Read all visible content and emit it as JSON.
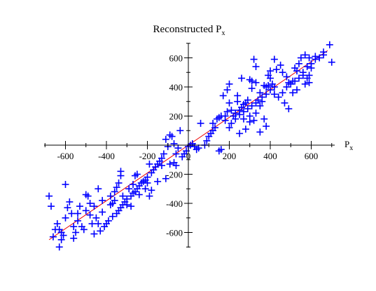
{
  "chart_data": {
    "type": "scatter",
    "title": "Reconstructed P",
    "title_sub": "x",
    "xlabel": "P",
    "xlabel_sub": "x",
    "ylabel": "",
    "xlim": [
      -700,
      700
    ],
    "ylim": [
      -700,
      700
    ],
    "x_ticks": [
      -600,
      -400,
      -200,
      0,
      200,
      400,
      600
    ],
    "y_ticks": [
      -600,
      -400,
      -200,
      0,
      200,
      400,
      600
    ],
    "x_tick_labels": [
      "-600",
      "-400",
      "-200",
      "0",
      "200",
      "400",
      "600"
    ],
    "y_tick_labels": [
      "-600",
      "-400",
      "-200",
      "0",
      "200",
      "400",
      "600"
    ],
    "grid": false,
    "marker": "plus",
    "marker_color": "#0000ff",
    "fit_line": {
      "color": "#ee0000",
      "x": [
        -680,
        680
      ],
      "y": [
        -650,
        650
      ]
    },
    "points": [
      [
        690,
        690
      ],
      [
        700,
        570
      ],
      [
        660,
        640
      ],
      [
        660,
        620
      ],
      [
        620,
        610
      ],
      [
        590,
        600
      ],
      [
        570,
        620
      ],
      [
        600,
        530
      ],
      [
        590,
        480
      ],
      [
        580,
        460
      ],
      [
        560,
        480
      ],
      [
        550,
        600
      ],
      [
        540,
        560
      ],
      [
        530,
        510
      ],
      [
        520,
        530
      ],
      [
        510,
        440
      ],
      [
        490,
        430
      ],
      [
        480,
        470
      ],
      [
        460,
        500
      ],
      [
        450,
        550
      ],
      [
        430,
        520
      ],
      [
        420,
        590
      ],
      [
        420,
        400
      ],
      [
        410,
        420
      ],
      [
        400,
        460
      ],
      [
        400,
        510
      ],
      [
        390,
        480
      ],
      [
        390,
        410
      ],
      [
        380,
        400
      ],
      [
        370,
        410
      ],
      [
        360,
        300
      ],
      [
        350,
        360
      ],
      [
        330,
        430
      ],
      [
        330,
        540
      ],
      [
        320,
        590
      ],
      [
        310,
        440
      ],
      [
        300,
        450
      ],
      [
        300,
        200
      ],
      [
        290,
        310
      ],
      [
        280,
        290
      ],
      [
        270,
        280
      ],
      [
        260,
        260
      ],
      [
        250,
        240
      ],
      [
        240,
        300
      ],
      [
        240,
        340
      ],
      [
        230,
        220
      ],
      [
        220,
        200
      ],
      [
        210,
        240
      ],
      [
        200,
        290
      ],
      [
        190,
        230
      ],
      [
        180,
        200
      ],
      [
        170,
        340
      ],
      [
        160,
        200
      ],
      [
        150,
        190
      ],
      [
        140,
        180
      ],
      [
        130,
        120
      ],
      [
        120,
        100
      ],
      [
        110,
        80
      ],
      [
        100,
        60
      ],
      [
        90,
        30
      ],
      [
        80,
        0
      ],
      [
        60,
        150
      ],
      [
        50,
        -20
      ],
      [
        40,
        -30
      ],
      [
        30,
        -10
      ],
      [
        20,
        10
      ],
      [
        10,
        0
      ],
      [
        0,
        -10
      ],
      [
        -10,
        -40
      ],
      [
        -20,
        -60
      ],
      [
        -30,
        -80
      ],
      [
        -40,
        100
      ],
      [
        -50,
        -20
      ],
      [
        -60,
        -60
      ],
      [
        -70,
        10
      ],
      [
        -80,
        60
      ],
      [
        -90,
        70
      ],
      [
        -100,
        -10
      ],
      [
        -110,
        40
      ],
      [
        -120,
        -60
      ],
      [
        -130,
        -90
      ],
      [
        -140,
        -110
      ],
      [
        -150,
        -130
      ],
      [
        -160,
        -150
      ],
      [
        -170,
        -170
      ],
      [
        -180,
        -190
      ],
      [
        -190,
        -130
      ],
      [
        -200,
        -220
      ],
      [
        -210,
        -240
      ],
      [
        -220,
        -250
      ],
      [
        -230,
        -260
      ],
      [
        -240,
        -280
      ],
      [
        -250,
        -300
      ],
      [
        -260,
        -320
      ],
      [
        -270,
        -330
      ],
      [
        -280,
        -350
      ],
      [
        -290,
        -300
      ],
      [
        -300,
        -370
      ],
      [
        -310,
        -390
      ],
      [
        -320,
        -410
      ],
      [
        -330,
        -430
      ],
      [
        -340,
        -450
      ],
      [
        -350,
        -470
      ],
      [
        -360,
        -380
      ],
      [
        -370,
        -490
      ],
      [
        -380,
        -410
      ],
      [
        -390,
        -520
      ],
      [
        -400,
        -540
      ],
      [
        -410,
        -560
      ],
      [
        -420,
        -460
      ],
      [
        -430,
        -590
      ],
      [
        -440,
        -540
      ],
      [
        -450,
        -500
      ],
      [
        -460,
        -610
      ],
      [
        -470,
        -540
      ],
      [
        -480,
        -400
      ],
      [
        -490,
        -350
      ],
      [
        -500,
        -450
      ],
      [
        -510,
        -580
      ],
      [
        -520,
        -560
      ],
      [
        -530,
        -420
      ],
      [
        -540,
        -520
      ],
      [
        -550,
        -600
      ],
      [
        -560,
        -640
      ],
      [
        -570,
        -470
      ],
      [
        -580,
        -390
      ],
      [
        -590,
        -430
      ],
      [
        -600,
        -500
      ],
      [
        -610,
        -620
      ],
      [
        -620,
        -650
      ],
      [
        -630,
        -700
      ],
      [
        -640,
        -540
      ],
      [
        -650,
        -580
      ],
      [
        -660,
        -630
      ],
      [
        -670,
        -420
      ],
      [
        -680,
        -350
      ],
      [
        -200,
        -260
      ],
      [
        -260,
        -210
      ],
      [
        -320,
        -350
      ],
      [
        -330,
        -180
      ],
      [
        -340,
        -260
      ],
      [
        -360,
        -320
      ],
      [
        -370,
        -400
      ],
      [
        -380,
        -350
      ],
      [
        -420,
        -380
      ],
      [
        -440,
        -300
      ],
      [
        -460,
        -420
      ],
      [
        -480,
        -480
      ],
      [
        -500,
        -340
      ],
      [
        -540,
        -470
      ],
      [
        -560,
        -560
      ],
      [
        -600,
        -270
      ],
      [
        -620,
        -600
      ],
      [
        -630,
        -580
      ],
      [
        -180,
        -310
      ],
      [
        -150,
        -250
      ],
      [
        -130,
        -140
      ],
      [
        -110,
        -230
      ],
      [
        -90,
        -130
      ],
      [
        -70,
        -120
      ],
      [
        -60,
        -140
      ],
      [
        -250,
        -200
      ],
      [
        -240,
        -340
      ],
      [
        -300,
        -410
      ],
      [
        -280,
        -420
      ],
      [
        -270,
        -270
      ],
      [
        -330,
        -210
      ],
      [
        -350,
        -290
      ],
      [
        -190,
        -350
      ],
      [
        -210,
        -300
      ],
      [
        200,
        120
      ],
      [
        210,
        150
      ],
      [
        230,
        180
      ],
      [
        250,
        210
      ],
      [
        270,
        230
      ],
      [
        290,
        250
      ],
      [
        310,
        270
      ],
      [
        330,
        290
      ],
      [
        340,
        310
      ],
      [
        360,
        330
      ],
      [
        380,
        350
      ],
      [
        400,
        380
      ],
      [
        420,
        350
      ],
      [
        440,
        330
      ],
      [
        460,
        360
      ],
      [
        480,
        400
      ],
      [
        500,
        420
      ],
      [
        520,
        440
      ],
      [
        540,
        460
      ],
      [
        560,
        500
      ],
      [
        580,
        540
      ],
      [
        600,
        560
      ],
      [
        620,
        590
      ],
      [
        640,
        600
      ],
      [
        250,
        80
      ],
      [
        280,
        110
      ],
      [
        300,
        160
      ],
      [
        320,
        170
      ],
      [
        350,
        90
      ],
      [
        380,
        130
      ],
      [
        150,
        -40
      ],
      [
        160,
        -30
      ],
      [
        120,
        150
      ],
      [
        180,
        170
      ],
      [
        190,
        380
      ],
      [
        200,
        420
      ],
      [
        260,
        460
      ],
      [
        270,
        180
      ],
      [
        310,
        390
      ],
      [
        330,
        220
      ],
      [
        350,
        270
      ],
      [
        370,
        180
      ],
      [
        470,
        290
      ],
      [
        490,
        250
      ],
      [
        510,
        360
      ],
      [
        530,
        380
      ],
      [
        570,
        420
      ],
      [
        590,
        430
      ]
    ]
  }
}
